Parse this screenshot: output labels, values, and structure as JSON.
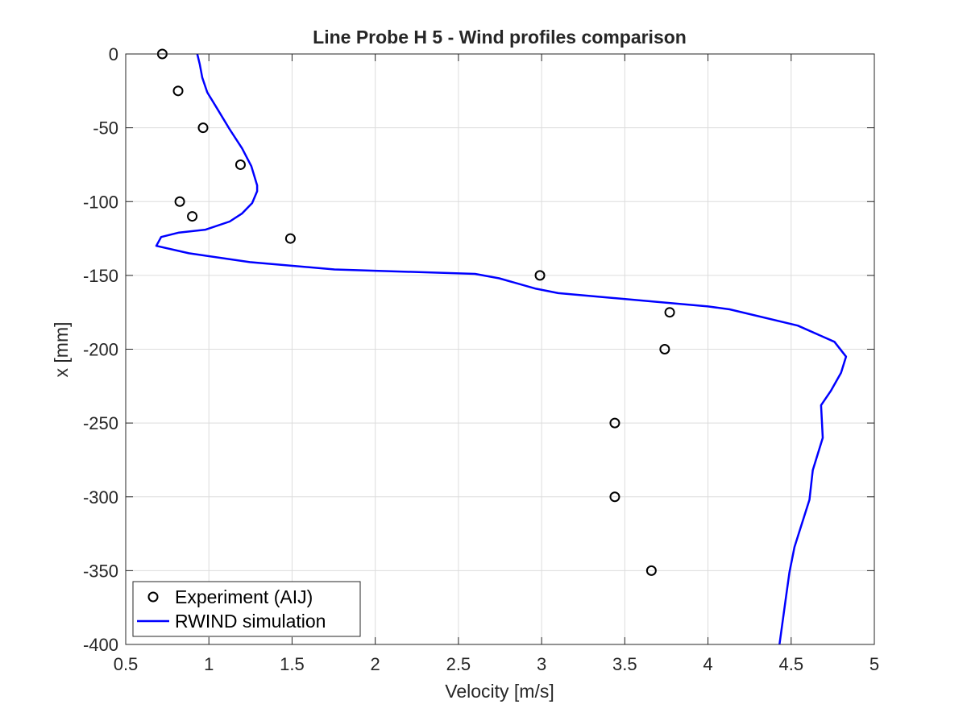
{
  "chart_data": {
    "type": "line",
    "title": "Line Probe H 5 - Wind profiles comparison",
    "xlabel": "Velocity [m/s]",
    "ylabel": "x [mm]",
    "xlim": [
      0.5,
      5
    ],
    "ylim": [
      -400,
      0
    ],
    "xticks": [
      0.5,
      1,
      1.5,
      2,
      2.5,
      3,
      3.5,
      4,
      4.5,
      5
    ],
    "xtick_labels": [
      "0.5",
      "1",
      "1.5",
      "2",
      "2.5",
      "3",
      "3.5",
      "4",
      "4.5",
      "5"
    ],
    "yticks": [
      0,
      -50,
      -100,
      -150,
      -200,
      -250,
      -300,
      -350,
      -400
    ],
    "ytick_labels": [
      "0",
      "-50",
      "-100",
      "-150",
      "-200",
      "-250",
      "-300",
      "-350",
      "-400"
    ],
    "grid": true,
    "legend_placement": "bottom-left",
    "series": [
      {
        "name": "Experiment (AIJ)",
        "style": "markers",
        "marker": "circle",
        "color": "#000000",
        "x": [
          0.72,
          0.815,
          0.965,
          1.19,
          0.825,
          0.9,
          1.49,
          2.99,
          3.77,
          3.74,
          3.44,
          3.44,
          3.66
        ],
        "y": [
          0,
          -25,
          -50,
          -75,
          -100,
          -110,
          -125,
          -150,
          -175,
          -200,
          -250,
          -300,
          -350
        ]
      },
      {
        "name": "RWIND simulation",
        "style": "line",
        "color": "#0000FF",
        "x": [
          0.93,
          0.945,
          0.96,
          0.99,
          1.05,
          1.125,
          1.2,
          1.255,
          1.29,
          1.29,
          1.26,
          1.2,
          1.125,
          0.98,
          0.82,
          0.713,
          0.684,
          0.88,
          1.246,
          1.755,
          2.6,
          2.745,
          2.966,
          3.1,
          4.0,
          4.13,
          4.54,
          4.76,
          4.83,
          4.8,
          4.74,
          4.68,
          4.69,
          4.63,
          4.61,
          4.565,
          4.52,
          4.49,
          4.47,
          4.43
        ],
        "y": [
          0,
          -7,
          -16,
          -26,
          -37,
          -51,
          -64,
          -76,
          -89,
          -93,
          -101,
          -108,
          -113.5,
          -119,
          -121,
          -124,
          -130,
          -135,
          -141,
          -146,
          -149,
          -152,
          -159,
          -162,
          -171,
          -173,
          -184,
          -195,
          -205,
          -216,
          -228,
          -238,
          -260,
          -282,
          -302,
          -318,
          -334,
          -351,
          -367,
          -400
        ]
      }
    ]
  }
}
